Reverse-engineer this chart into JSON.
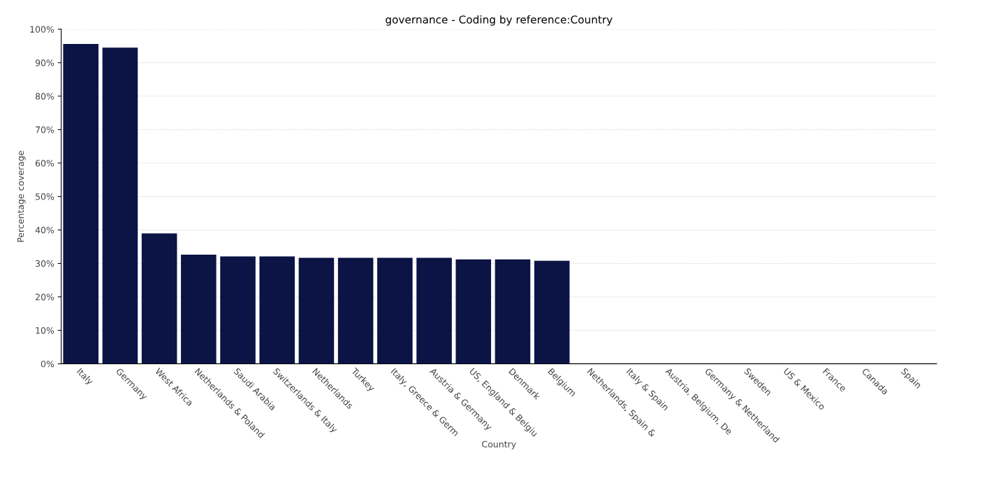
{
  "chart_data": {
    "type": "bar",
    "title": "governance - Coding by reference:Country",
    "xlabel": "Country",
    "ylabel": "Percentage coverage",
    "categories": [
      "Italy",
      "Germany",
      "West Africa",
      "Netherlands & Poland",
      "Saudi Arabia",
      "Switzerlands & Italy",
      "Netherlands",
      "Turkey",
      "Italy, Greece & Germ",
      "Austria & Germany",
      "US, England & Belgiu",
      "Denmark",
      "Belgium",
      "Netherlands, Spain &",
      "Italy & Spain",
      "Austria, Belgium, De",
      "Germany & Netherland",
      "Sweden",
      "US & Mexico",
      "France",
      "Canada",
      "Spain"
    ],
    "values": [
      95.6,
      94.5,
      39.0,
      32.6,
      32.1,
      32.1,
      31.7,
      31.7,
      31.7,
      31.7,
      31.2,
      31.2,
      30.8,
      0,
      0,
      0,
      0,
      0,
      0,
      0,
      0,
      0
    ],
    "color": "#0c1445",
    "ylim": [
      0,
      100
    ],
    "yticks": [
      {
        "value": 0,
        "label": "0%"
      },
      {
        "value": 10,
        "label": "10%"
      },
      {
        "value": 20,
        "label": "20%"
      },
      {
        "value": 30,
        "label": "30%"
      },
      {
        "value": 40,
        "label": "40%"
      },
      {
        "value": 50,
        "label": "50%"
      },
      {
        "value": 60,
        "label": "60%"
      },
      {
        "value": 70,
        "label": "70%"
      },
      {
        "value": 80,
        "label": "80%"
      },
      {
        "value": 90,
        "label": "90%"
      },
      {
        "value": 100,
        "label": "100%"
      }
    ],
    "grid": "y"
  }
}
